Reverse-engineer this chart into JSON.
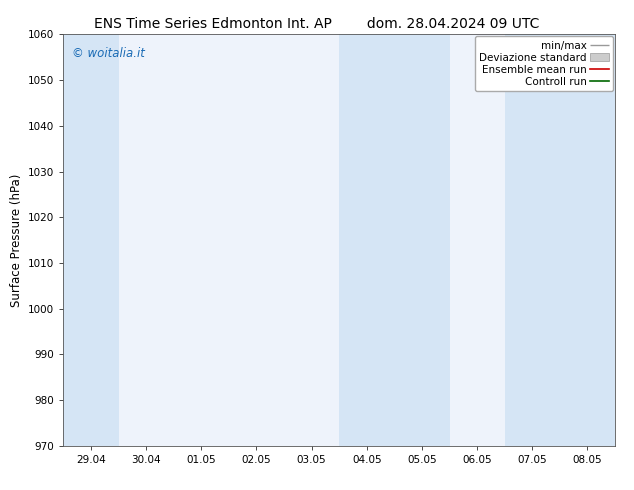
{
  "title_left": "ENS Time Series Edmonton Int. AP",
  "title_right": "dom. 28.04.2024 09 UTC",
  "ylabel": "Surface Pressure (hPa)",
  "ylim": [
    970,
    1060
  ],
  "yticks": [
    970,
    980,
    990,
    1000,
    1010,
    1020,
    1030,
    1040,
    1050,
    1060
  ],
  "xtick_labels": [
    "29.04",
    "30.04",
    "01.05",
    "02.05",
    "03.05",
    "04.05",
    "05.05",
    "06.05",
    "07.05",
    "08.05"
  ],
  "bg_color": "#ffffff",
  "plot_bg_color": "#eef3fb",
  "shaded_color": "#d5e5f5",
  "watermark_text": "© woitalia.it",
  "watermark_color": "#1a6bb5",
  "title_fontsize": 10,
  "tick_fontsize": 7.5,
  "ylabel_fontsize": 8.5,
  "legend_fontsize": 7.5
}
